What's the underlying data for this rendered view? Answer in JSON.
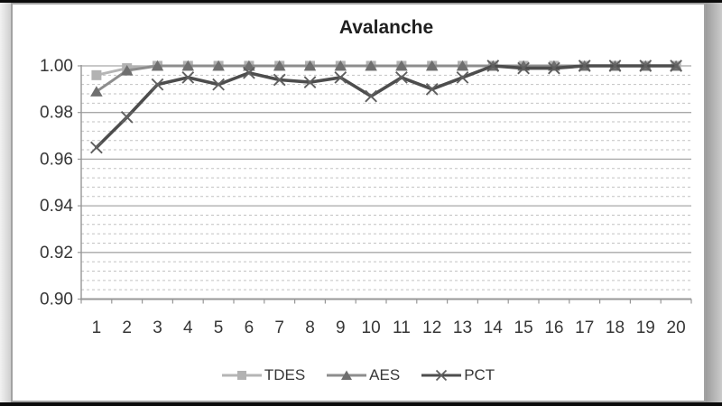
{
  "window": {
    "letterbox_color": "#0b0b0b",
    "slide_background": "#ffffff",
    "slide_border_color": "#a2a2a2"
  },
  "chart_data": {
    "type": "line",
    "title": "Avalanche",
    "xlabel": "",
    "ylabel": "",
    "x": [
      1,
      2,
      3,
      4,
      5,
      6,
      7,
      8,
      9,
      10,
      11,
      12,
      13,
      14,
      15,
      16,
      17,
      18,
      19,
      20
    ],
    "x_labels": [
      "1",
      "2",
      "3",
      "4",
      "5",
      "6",
      "7",
      "8",
      "9",
      "10",
      "11",
      "12",
      "13",
      "14",
      "15",
      "16",
      "17",
      "18",
      "19",
      "20"
    ],
    "ylim": [
      0.9,
      1.0
    ],
    "yticks": [
      {
        "value": 1.0,
        "label": "1.00"
      },
      {
        "value": 0.98,
        "label": "0.98"
      },
      {
        "value": 0.96,
        "label": "0.96"
      },
      {
        "value": 0.94,
        "label": "0.94"
      },
      {
        "value": 0.92,
        "label": "0.92"
      },
      {
        "value": 0.9,
        "label": "0.90"
      }
    ],
    "minor_tick_step": 0.004,
    "grid": {
      "major": "solid",
      "minor": "dashed"
    },
    "legend_position": "bottom",
    "series": [
      {
        "name": "TDES",
        "marker": "square",
        "line_color": "#b5b5b5",
        "marker_color": "#b2b2b2",
        "values": [
          0.996,
          0.999,
          1.0,
          1.0,
          1.0,
          1.0,
          1.0,
          1.0,
          1.0,
          1.0,
          1.0,
          1.0,
          1.0,
          1.0,
          1.0,
          1.0,
          1.0,
          1.0,
          1.0,
          1.0
        ]
      },
      {
        "name": "AES",
        "marker": "triangle",
        "line_color": "#8d8d8d",
        "marker_color": "#6f6f6f",
        "values": [
          0.989,
          0.998,
          1.0,
          1.0,
          1.0,
          1.0,
          1.0,
          1.0,
          1.0,
          1.0,
          1.0,
          1.0,
          1.0,
          1.0,
          1.0,
          1.0,
          1.0,
          1.0,
          1.0,
          1.0
        ]
      },
      {
        "name": "PCT",
        "marker": "x",
        "line_color": "#4d4d4d",
        "marker_color": "#606060",
        "values": [
          0.965,
          0.978,
          0.992,
          0.995,
          0.992,
          0.997,
          0.994,
          0.993,
          0.995,
          0.987,
          0.995,
          0.99,
          0.995,
          1.0,
          0.999,
          0.999,
          1.0,
          1.0,
          1.0,
          1.0
        ]
      }
    ],
    "axis_color": "#979797",
    "major_grid_color": "#a8a8a8",
    "minor_grid_color": "#c2c2c2",
    "tick_label_color": "#363636"
  }
}
